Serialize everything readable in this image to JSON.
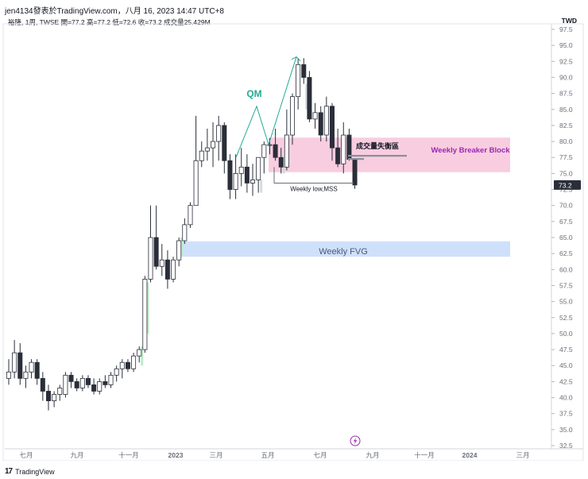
{
  "header": {
    "line1": "jen4134發表於TradingView.com，八月 16, 2023 14:47 UTC+8",
    "line2": "裕隆, 1周, TWSE  開=77.2 高=77.2 低=72.6 收=73.2 成交量25.429M"
  },
  "currency": "TWD",
  "footer": {
    "logo": "17",
    "brand": "TradingView"
  },
  "chart_data": {
    "type": "candlestick",
    "y_ticks": [
      "97.5",
      "95.0",
      "92.5",
      "90.0",
      "87.5",
      "85.0",
      "82.5",
      "80.0",
      "77.5",
      "75.0",
      "72.5",
      "70.0",
      "67.5",
      "65.0",
      "62.5",
      "60.0",
      "57.5",
      "55.0",
      "52.5",
      "50.0",
      "47.5",
      "45.0",
      "42.5",
      "40.0",
      "37.5",
      "35.0",
      "32.5"
    ],
    "ylim": [
      32.5,
      97.5
    ],
    "x_ticks": [
      "七月",
      "九月",
      "十一月",
      "2023",
      "三月",
      "五月",
      "七月",
      "九月",
      "十一月",
      "2024",
      "三月"
    ],
    "x_ticks_bold": [
      "2023",
      "2024"
    ],
    "last_price": "73.2",
    "candles": [
      [
        43,
        46,
        42,
        44
      ],
      [
        44,
        49,
        43,
        47
      ],
      [
        47,
        48.5,
        42,
        43
      ],
      [
        43,
        45,
        41.5,
        44
      ],
      [
        44,
        46,
        43,
        45.5
      ],
      [
        45.5,
        46,
        42,
        43
      ],
      [
        43,
        44,
        39.5,
        41
      ],
      [
        41,
        42,
        38,
        39.5
      ],
      [
        39.5,
        41,
        38.5,
        40.5
      ],
      [
        40.5,
        42,
        39.5,
        41.5
      ],
      [
        40.5,
        44,
        40,
        43.5
      ],
      [
        43.5,
        44,
        41.5,
        42.5
      ],
      [
        42.5,
        43,
        41,
        41.5
      ],
      [
        41.5,
        43.5,
        41,
        43
      ],
      [
        43,
        43.5,
        41.5,
        42
      ],
      [
        42,
        43,
        40.5,
        41
      ],
      [
        41,
        43,
        40.5,
        42.5
      ],
      [
        42.5,
        43.5,
        41.5,
        42
      ],
      [
        42,
        44,
        41.5,
        43.5
      ],
      [
        43.5,
        45,
        42.5,
        44.5
      ],
      [
        44.5,
        46,
        43,
        45.5
      ],
      [
        45.5,
        46,
        44,
        44.5
      ],
      [
        44.5,
        47,
        44,
        46.5
      ],
      [
        46.5,
        48,
        45.5,
        47.5
      ],
      [
        47.5,
        59,
        47,
        58.5
      ],
      [
        58.5,
        70,
        58,
        65
      ],
      [
        65,
        70,
        60,
        60.5
      ],
      [
        60.5,
        64,
        59,
        61.5
      ],
      [
        61.5,
        63,
        57,
        58.5
      ],
      [
        58.5,
        62,
        58,
        61.5
      ],
      [
        61.5,
        65,
        60.5,
        64.5
      ],
      [
        64.5,
        68,
        64,
        67
      ],
      [
        67,
        70.5,
        66.5,
        70
      ],
      [
        70,
        84,
        70,
        77
      ],
      [
        77,
        80,
        76,
        78.5
      ],
      [
        78.5,
        82,
        77,
        79
      ],
      [
        79,
        83,
        76,
        80
      ],
      [
        80,
        84,
        77,
        82.5
      ],
      [
        82.5,
        83,
        75,
        77
      ],
      [
        77,
        78,
        71,
        72.5
      ],
      [
        72.5,
        78,
        71,
        75
      ],
      [
        75,
        79,
        73,
        76
      ],
      [
        76,
        78,
        72,
        73.5
      ],
      [
        73.5,
        76.5,
        71.5,
        74
      ],
      [
        74,
        77.5,
        72,
        77.5
      ],
      [
        77.5,
        80,
        75,
        79.5
      ],
      [
        79.5,
        80.5,
        78,
        79.5
      ],
      [
        79.5,
        82,
        77,
        77.5
      ],
      [
        77.5,
        79,
        75,
        76
      ],
      [
        76,
        85,
        75.5,
        81
      ],
      [
        81,
        87.5,
        79.5,
        87
      ],
      [
        87,
        93,
        85,
        92
      ],
      [
        92,
        93,
        89,
        90
      ],
      [
        90,
        91,
        83,
        83.5
      ],
      [
        83.5,
        86,
        82,
        84.5
      ],
      [
        84.5,
        85.5,
        80,
        81
      ],
      [
        81,
        87,
        80,
        85.5
      ],
      [
        85.5,
        86,
        77,
        79
      ],
      [
        79,
        82,
        76,
        76.5
      ],
      [
        76.5,
        83,
        75,
        81
      ],
      [
        81,
        82,
        77,
        77.2
      ],
      [
        77.2,
        77.2,
        72.6,
        73.2
      ]
    ],
    "annotations": {
      "qm_label": "QM",
      "breaker_block_label": "Weekly Breaker Block",
      "fvg_label": "Weekly FVG",
      "imbalance_label": "成交量失衡區",
      "mss_label": "Weekly low,MSS"
    },
    "colors": {
      "up": "#ffffff",
      "down": "#2a2e39",
      "wick": "#2a2e39",
      "qm": "#22ab94",
      "breaker": "#f8cde0",
      "fvg": "#cfe0fb",
      "breaker_text": "#9c27b0"
    }
  }
}
